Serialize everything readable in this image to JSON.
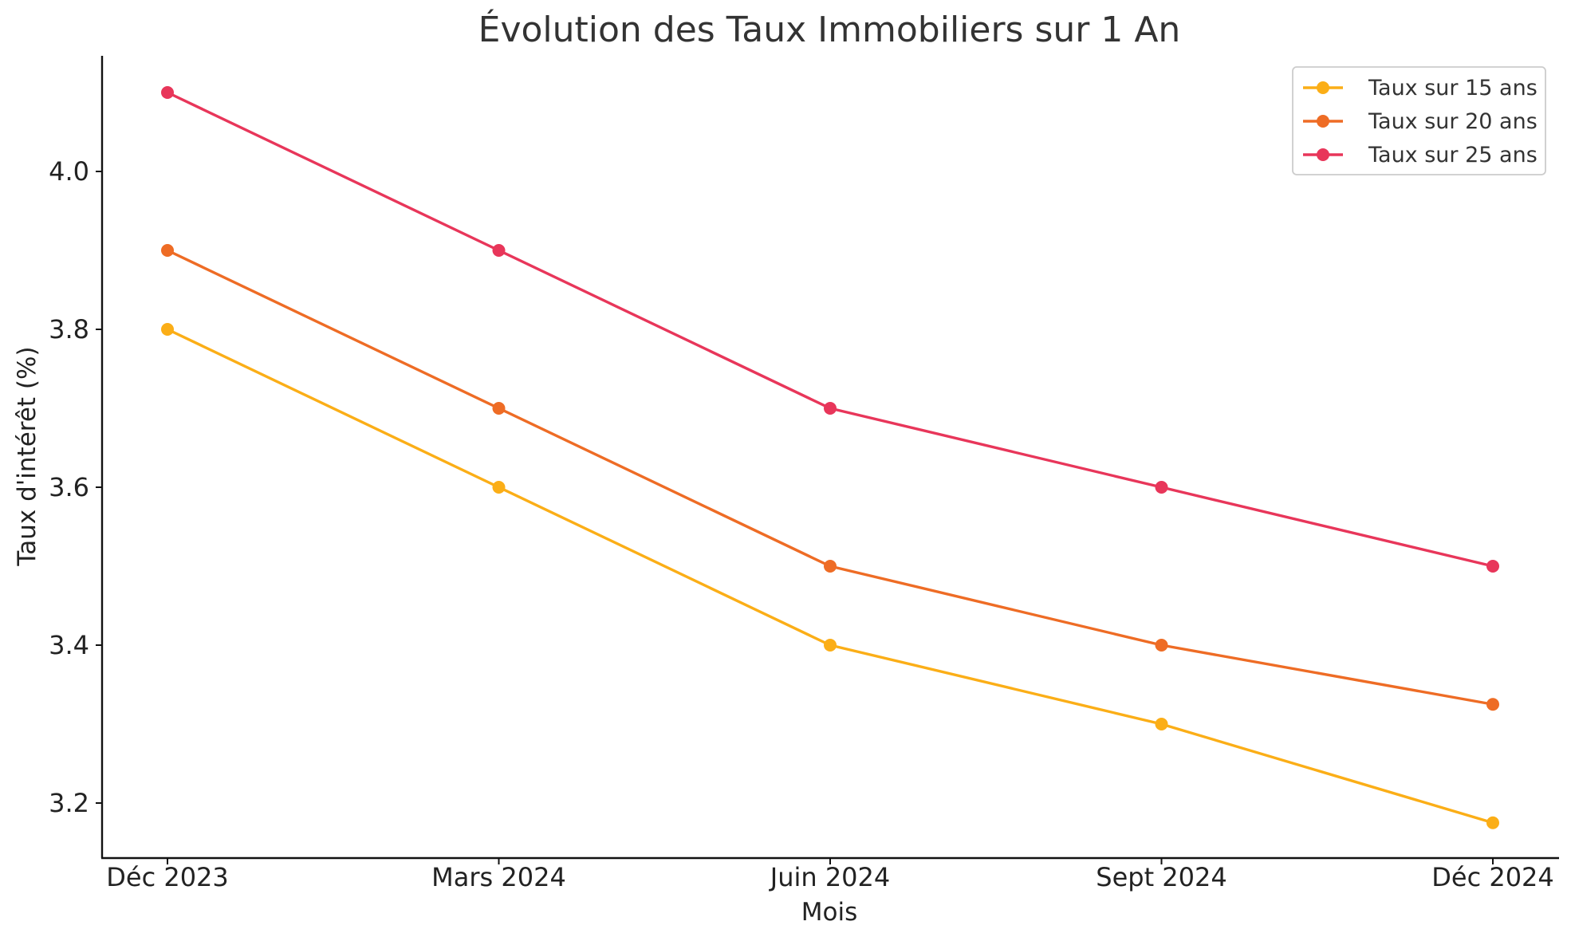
{
  "chart_data": {
    "type": "line",
    "title": "Évolution des Taux Immobiliers sur 1 An",
    "xlabel": "Mois",
    "ylabel": "Taux d'intérêt (%)",
    "categories": [
      "Déc 2023",
      "Mars 2024",
      "Juin 2024",
      "Sept 2024",
      "Déc 2024"
    ],
    "yticks": [
      "3.2",
      "3.4",
      "3.6",
      "3.8",
      "4.0"
    ],
    "ylim": [
      3.13,
      4.15
    ],
    "grid": false,
    "legend_position": "top-right",
    "series": [
      {
        "name": "Taux sur 15 ans",
        "color": "#FBAE17",
        "values": [
          3.8,
          3.6,
          3.4,
          3.3,
          3.175
        ]
      },
      {
        "name": "Taux sur 20 ans",
        "color": "#EE6C25",
        "values": [
          3.9,
          3.7,
          3.5,
          3.4,
          3.325
        ]
      },
      {
        "name": "Taux sur 25 ans",
        "color": "#E8365A",
        "values": [
          4.1,
          3.9,
          3.7,
          3.6,
          3.5
        ]
      }
    ]
  }
}
